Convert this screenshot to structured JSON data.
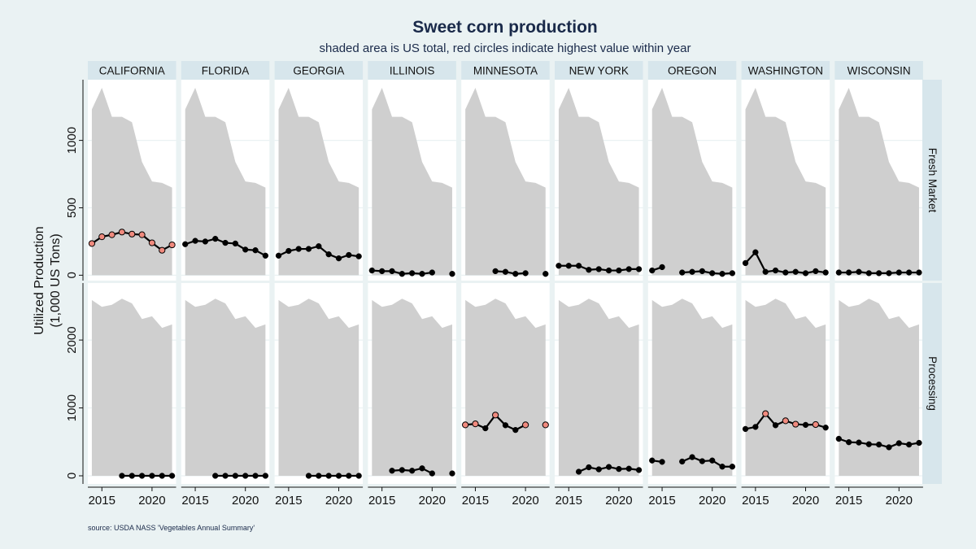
{
  "chart_data": {
    "type": "line",
    "title": "Sweet corn production",
    "subtitle": "shaded area is US total, red circles indicate highest value within year",
    "ylabel_lines": [
      "Utilized Production",
      "(1,000 US Tons)"
    ],
    "source": "source: USDA NASS 'Vegetables Annual Summary'",
    "x_ticks": [
      2015,
      2020
    ],
    "xlim": [
      2013.6,
      2022.4
    ],
    "columns": [
      "CALIFORNIA",
      "FLORIDA",
      "GEORGIA",
      "ILLINOIS",
      "MINNESOTA",
      "NEW YORK",
      "OREGON",
      "WASHINGTON",
      "WISCONSIN"
    ],
    "rows": [
      {
        "name": "Fresh Market",
        "ylim": [
          -40,
          1450
        ],
        "y_ticks": [
          0,
          500,
          1000
        ],
        "us_total": {
          "x": [
            2014,
            2015,
            2016,
            2017,
            2018,
            2019,
            2020,
            2021,
            2022
          ],
          "y": [
            1230,
            1390,
            1175,
            1175,
            1135,
            840,
            695,
            685,
            650
          ]
        },
        "states": {
          "CALIFORNIA": {
            "x": [
              2014,
              2015,
              2016,
              2017,
              2018,
              2019,
              2020,
              2021,
              2022
            ],
            "y": [
              235,
              285,
              300,
              320,
              305,
              300,
              240,
              185,
              225
            ],
            "max": [
              1,
              1,
              1,
              1,
              1,
              1,
              1,
              1,
              1
            ]
          },
          "FLORIDA": {
            "x": [
              2014,
              2015,
              2016,
              2017,
              2018,
              2019,
              2020,
              2021,
              2022
            ],
            "y": [
              230,
              255,
              250,
              270,
              240,
              235,
              190,
              185,
              145
            ],
            "max": [
              0,
              0,
              0,
              0,
              0,
              0,
              0,
              0,
              0
            ]
          },
          "GEORGIA": {
            "x": [
              2014,
              2015,
              2016,
              2017,
              2018,
              2019,
              2020,
              2021,
              2022
            ],
            "y": [
              145,
              180,
              195,
              195,
              215,
              155,
              125,
              150,
              140
            ],
            "max": [
              0,
              0,
              0,
              0,
              0,
              0,
              0,
              0,
              0
            ]
          },
          "ILLINOIS": {
            "x": [
              2014,
              2015,
              2016,
              2017,
              2018,
              2019,
              2020,
              2022
            ],
            "y": [
              35,
              30,
              30,
              10,
              15,
              10,
              20,
              10
            ],
            "max": [
              0,
              0,
              0,
              0,
              0,
              0,
              0,
              0
            ]
          },
          "MINNESOTA": {
            "x": [
              2017,
              2018,
              2019,
              2020,
              2022
            ],
            "y": [
              30,
              25,
              10,
              15,
              10
            ],
            "max": [
              0,
              0,
              0,
              0,
              0
            ]
          },
          "NEW YORK": {
            "x": [
              2014,
              2015,
              2016,
              2017,
              2018,
              2019,
              2020,
              2021,
              2022
            ],
            "y": [
              70,
              70,
              70,
              40,
              45,
              35,
              35,
              45,
              45
            ],
            "max": [
              0,
              0,
              0,
              0,
              0,
              0,
              0,
              0,
              0
            ]
          },
          "OREGON": {
            "x": [
              2014,
              2015,
              2017,
              2018,
              2019,
              2020,
              2021,
              2022
            ],
            "y": [
              35,
              60,
              20,
              25,
              30,
              15,
              10,
              15
            ],
            "max": [
              0,
              0,
              0,
              0,
              0,
              0,
              0,
              0
            ]
          },
          "WASHINGTON": {
            "x": [
              2014,
              2015,
              2016,
              2017,
              2018,
              2019,
              2020,
              2021,
              2022
            ],
            "y": [
              90,
              170,
              25,
              35,
              20,
              25,
              15,
              30,
              20
            ],
            "max": [
              0,
              0,
              0,
              0,
              0,
              0,
              0,
              0,
              0
            ]
          },
          "WISCONSIN": {
            "x": [
              2014,
              2015,
              2016,
              2017,
              2018,
              2019,
              2020,
              2021,
              2022
            ],
            "y": [
              20,
              20,
              25,
              15,
              15,
              15,
              20,
              20,
              20
            ],
            "max": [
              0,
              0,
              0,
              0,
              0,
              0,
              0,
              0,
              0
            ]
          }
        }
      },
      {
        "name": "Processing",
        "ylim": [
          -120,
          2840
        ],
        "y_ticks": [
          0,
          1000,
          2000
        ],
        "us_total": {
          "x": [
            2014,
            2015,
            2016,
            2017,
            2018,
            2019,
            2020,
            2021,
            2022
          ],
          "y": [
            2590,
            2490,
            2520,
            2610,
            2540,
            2310,
            2350,
            2180,
            2230
          ]
        },
        "states": {
          "CALIFORNIA": {
            "x": [
              2017,
              2018,
              2019,
              2020,
              2021,
              2022
            ],
            "y": [
              0,
              0,
              0,
              0,
              0,
              0
            ],
            "max": [
              0,
              0,
              0,
              0,
              0,
              0
            ]
          },
          "FLORIDA": {
            "x": [
              2017,
              2018,
              2019,
              2020,
              2021,
              2022
            ],
            "y": [
              0,
              0,
              0,
              0,
              0,
              0
            ],
            "max": [
              0,
              0,
              0,
              0,
              0,
              0
            ]
          },
          "GEORGIA": {
            "x": [
              2017,
              2018,
              2019,
              2020,
              2021,
              2022
            ],
            "y": [
              0,
              0,
              0,
              0,
              0,
              0
            ],
            "max": [
              0,
              0,
              0,
              0,
              0,
              0
            ]
          },
          "ILLINOIS": {
            "x": [
              2016,
              2017,
              2018,
              2019,
              2020,
              2022
            ],
            "y": [
              75,
              85,
              75,
              110,
              35,
              35
            ],
            "max": [
              0,
              0,
              0,
              0,
              0,
              0
            ]
          },
          "MINNESOTA": {
            "x": [
              2014,
              2015,
              2016,
              2017,
              2018,
              2019,
              2020,
              2022
            ],
            "y": [
              750,
              765,
              700,
              895,
              745,
              675,
              750,
              750
            ],
            "max": [
              1,
              1,
              0,
              1,
              0,
              0,
              1,
              1
            ]
          },
          "NEW YORK": {
            "x": [
              2016,
              2017,
              2018,
              2019,
              2020,
              2021,
              2022
            ],
            "y": [
              60,
              125,
              95,
              130,
              100,
              105,
              85
            ],
            "max": [
              0,
              0,
              0,
              0,
              0,
              0,
              0
            ]
          },
          "OREGON": {
            "x": [
              2014,
              2015,
              2017,
              2018,
              2019,
              2020,
              2021,
              2022
            ],
            "y": [
              225,
              205,
              210,
              275,
              215,
              225,
              135,
              135
            ],
            "max": [
              0,
              0,
              0,
              0,
              0,
              0,
              0,
              0
            ]
          },
          "WASHINGTON": {
            "x": [
              2014,
              2015,
              2016,
              2017,
              2018,
              2019,
              2020,
              2021,
              2022
            ],
            "y": [
              690,
              720,
              915,
              745,
              810,
              760,
              750,
              755,
              710
            ],
            "max": [
              0,
              0,
              1,
              0,
              1,
              1,
              0,
              1,
              0
            ]
          },
          "WISCONSIN": {
            "x": [
              2014,
              2015,
              2016,
              2017,
              2018,
              2019,
              2020,
              2021,
              2022
            ],
            "y": [
              545,
              495,
              490,
              465,
              460,
              420,
              480,
              460,
              485
            ],
            "max": [
              0,
              0,
              0,
              0,
              0,
              0,
              0,
              0,
              0
            ]
          }
        }
      }
    ]
  },
  "colors": {
    "background": "#eaf2f3",
    "panel": "#ffffff",
    "strip": "#d7e6ec",
    "us_area": "#cfcfcf",
    "line": "#000000",
    "highlight": "#f08a7e"
  }
}
